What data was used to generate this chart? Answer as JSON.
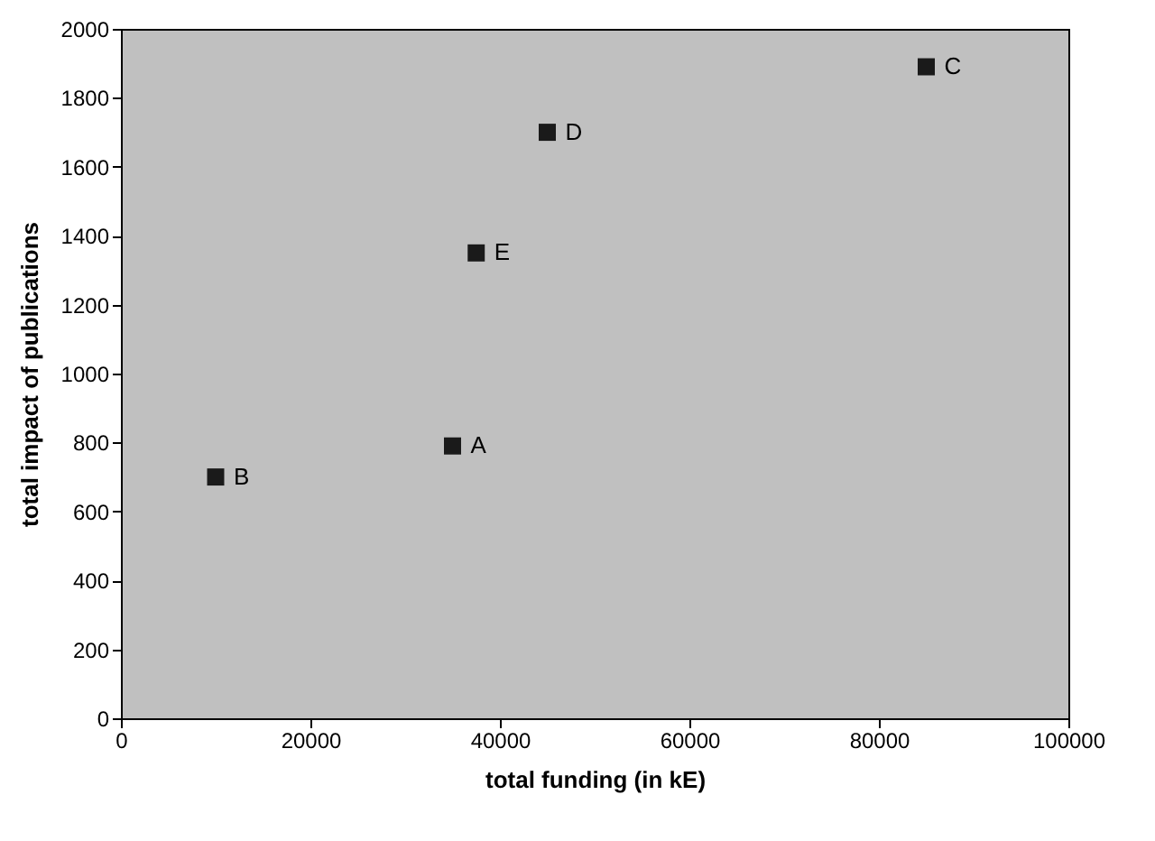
{
  "chart_data": {
    "type": "scatter",
    "xlabel": "total funding (in kE)",
    "ylabel": "total impact of publications",
    "x": [
      35000,
      10000,
      85000,
      45000,
      37500
    ],
    "series": [
      {
        "color": "#1a1a1a",
        "values": [
          790,
          700,
          1890,
          1700,
          1350
        ]
      }
    ],
    "marker": "square",
    "grid": false,
    "xlim": [
      0,
      100000
    ],
    "xticks": [
      0,
      20000,
      40000,
      60000,
      80000,
      100000
    ],
    "ylim": [
      0,
      2000
    ],
    "yticks": [
      0,
      200,
      400,
      600,
      800,
      1000,
      1200,
      1400,
      1600,
      1800,
      2000
    ],
    "annotations": [
      {
        "text": "A",
        "x": 35000,
        "y": 790
      },
      {
        "text": "B",
        "x": 10000,
        "y": 700
      },
      {
        "text": "C",
        "x": 85000,
        "y": 1890
      },
      {
        "text": "D",
        "x": 45000,
        "y": 1700
      },
      {
        "text": "E",
        "x": 37500,
        "y": 1350
      }
    ]
  }
}
